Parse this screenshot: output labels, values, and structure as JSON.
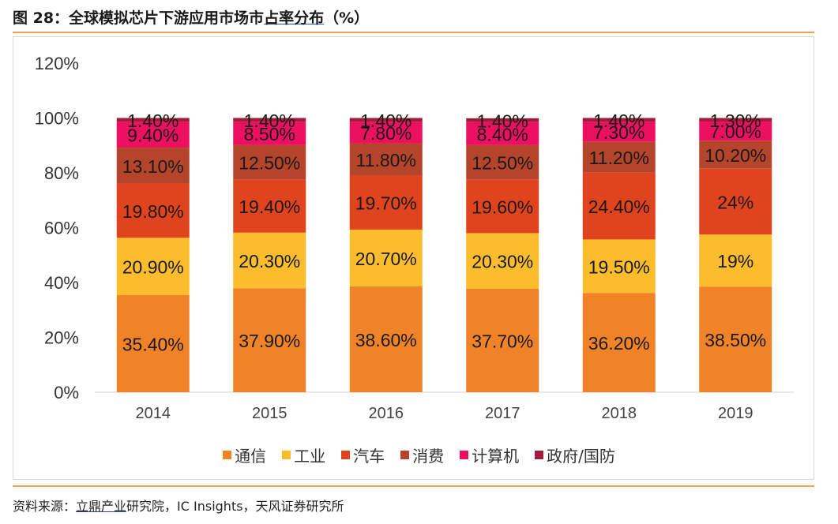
{
  "figure": {
    "title_prefix": "图 28：全球模拟芯片下游应用市场市",
    "title_underlined": "占率分布",
    "title_suffix": "（%）",
    "source_prefix": "资料来源：",
    "source_underlined": "立鼎产业",
    "source_suffix": "研究院，IC Insights，天风证券研究所"
  },
  "chart_data": {
    "type": "bar",
    "stacked": true,
    "title": "全球模拟芯片下游应用市场市占率分布（%）",
    "categories": [
      "2014",
      "2015",
      "2016",
      "2017",
      "2018",
      "2019"
    ],
    "ylim": [
      0,
      120
    ],
    "yticks": [
      0,
      20,
      40,
      60,
      80,
      100,
      120
    ],
    "ytick_labels": [
      "0%",
      "20%",
      "40%",
      "60%",
      "80%",
      "100%",
      "120%"
    ],
    "legend_position": "bottom",
    "series": [
      {
        "name": "通信",
        "color": "#f08228",
        "values": [
          35.4,
          37.9,
          38.6,
          37.7,
          36.2,
          38.5
        ],
        "labels": [
          "35.40%",
          "37.90%",
          "38.60%",
          "37.70%",
          "36.20%",
          "38.50%"
        ]
      },
      {
        "name": "工业",
        "color": "#fbbd2b",
        "values": [
          20.9,
          20.3,
          20.7,
          20.3,
          19.5,
          19
        ],
        "labels": [
          "20.90%",
          "20.30%",
          "20.70%",
          "20.30%",
          "19.50%",
          "19%"
        ]
      },
      {
        "name": "汽车",
        "color": "#e0441e",
        "values": [
          19.8,
          19.4,
          19.7,
          19.6,
          24.4,
          24
        ],
        "labels": [
          "19.80%",
          "19.40%",
          "19.70%",
          "19.60%",
          "24.40%",
          "24%"
        ]
      },
      {
        "name": "消费",
        "color": "#b5452a",
        "values": [
          13.1,
          12.5,
          11.8,
          12.5,
          11.2,
          10.2
        ],
        "labels": [
          "13.10%",
          "12.50%",
          "11.80%",
          "12.50%",
          "11.20%",
          "10.20%"
        ]
      },
      {
        "name": "计算机",
        "color": "#ee1060",
        "values": [
          9.4,
          8.5,
          7.8,
          8.4,
          7.3,
          7.0
        ],
        "labels": [
          "9.40%",
          "8.50%",
          "7.80%",
          "8.40%",
          "7.30%",
          "7.00%"
        ]
      },
      {
        "name": "政府/国防",
        "color": "#a31b3c",
        "values": [
          1.4,
          1.4,
          1.4,
          1.4,
          1.4,
          1.3
        ],
        "labels": [
          "1.40%",
          "1.40%",
          "1.40%",
          "1.40%",
          "1.40%",
          "1.30%"
        ]
      }
    ]
  }
}
